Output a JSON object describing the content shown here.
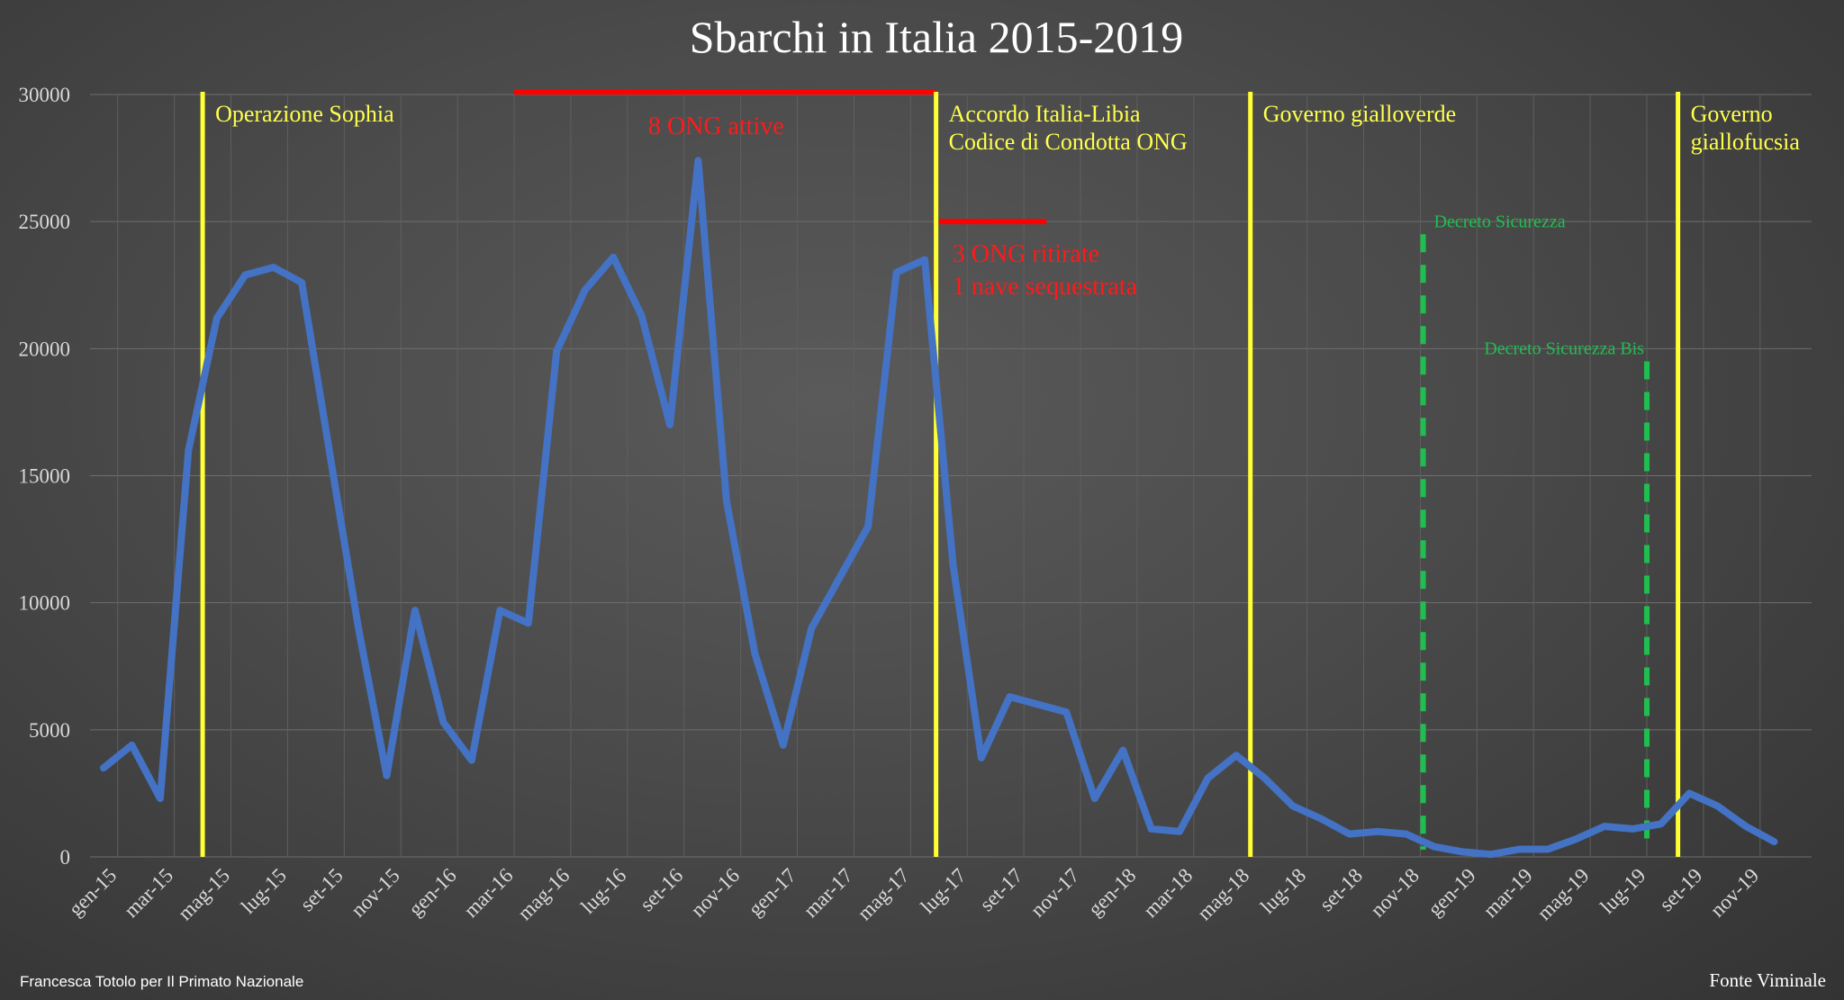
{
  "chart_data": {
    "type": "line",
    "title": "Sbarchi in Italia 2015-2019",
    "ylim": [
      0,
      30000
    ],
    "yticks": [
      "0",
      "5000",
      "10000",
      "15000",
      "20000",
      "25000",
      "30000"
    ],
    "grid": true,
    "x": [
      "gen-15",
      "feb-15",
      "mar-15",
      "apr-15",
      "mag-15",
      "giu-15",
      "lug-15",
      "ago-15",
      "set-15",
      "ott-15",
      "nov-15",
      "dic-15",
      "gen-16",
      "feb-16",
      "mar-16",
      "apr-16",
      "mag-16",
      "giu-16",
      "lug-16",
      "ago-16",
      "set-16",
      "ott-16",
      "nov-16",
      "dic-16",
      "gen-17",
      "feb-17",
      "mar-17",
      "apr-17",
      "mag-17",
      "giu-17",
      "lug-17",
      "ago-17",
      "set-17",
      "ott-17",
      "nov-17",
      "dic-17",
      "gen-18",
      "feb-18",
      "mar-18",
      "apr-18",
      "mag-18",
      "giu-18",
      "lug-18",
      "ago-18",
      "set-18",
      "ott-18",
      "nov-18",
      "dic-18",
      "gen-19",
      "feb-19",
      "mar-19",
      "apr-19",
      "mag-19",
      "giu-19",
      "lug-19",
      "ago-19",
      "set-19",
      "ott-19",
      "nov-19",
      "dic-19"
    ],
    "xtick_labels": [
      "gen-15",
      "mar-15",
      "mag-15",
      "lug-15",
      "set-15",
      "nov-15",
      "gen-16",
      "mar-16",
      "mag-16",
      "lug-16",
      "set-16",
      "nov-16",
      "gen-17",
      "mar-17",
      "mag-17",
      "lug-17",
      "set-17",
      "nov-17",
      "gen-18",
      "mar-18",
      "mag-18",
      "lug-18",
      "set-18",
      "nov-18",
      "gen-19",
      "mar-19",
      "mag-19",
      "lug-19",
      "set-19",
      "nov-19"
    ],
    "series": [
      {
        "color": "#4472c4",
        "values": [
          3500,
          4400,
          2300,
          16000,
          21200,
          22900,
          23200,
          22600,
          15800,
          9000,
          3200,
          9700,
          5300,
          3800,
          9700,
          9200,
          19900,
          22300,
          23600,
          21300,
          17000,
          27400,
          14000,
          8000,
          4400,
          9000,
          11000,
          13000,
          23000,
          23500,
          11500,
          3900,
          6300,
          6000,
          5700,
          2300,
          4200,
          1100,
          1000,
          3100,
          4000,
          3100,
          2000,
          1500,
          900,
          1000,
          900,
          400,
          200,
          100,
          300,
          300,
          700,
          1200,
          1100,
          1300,
          2500,
          2000,
          1200,
          600
        ]
      }
    ],
    "annotations": {
      "yellow_lines": [
        {
          "x_index": 3.5,
          "label": [
            "Operazione Sophia"
          ]
        },
        {
          "x_index": 29.4,
          "label": [
            "Accordo Italia-Libia",
            "Codice di Condotta ONG"
          ]
        },
        {
          "x_index": 40.5,
          "label": [
            "Governo gialloverde"
          ]
        },
        {
          "x_index": 55.6,
          "label": [
            "Governo",
            "giallofucsia"
          ]
        }
      ],
      "red_bars": [
        {
          "x_from": 14.5,
          "x_to": 29.4,
          "y": 30100,
          "label": [
            "8 ONG attive"
          ]
        },
        {
          "x_from": 29.5,
          "x_to": 33.3,
          "y": 25000,
          "label": [
            "3 ONG ritirate",
            "1 nave sequestrata"
          ]
        }
      ],
      "green_dashed": [
        {
          "x_index": 46.6,
          "y_top": 24500,
          "label": "Decreto Sicurezza"
        },
        {
          "x_index": 54.5,
          "y_top": 19500,
          "label": "Decreto Sicurezza Bis"
        }
      ]
    }
  },
  "footer": {
    "credit": "Francesca Totolo per Il Primato Nazionale",
    "source": "Fonte Viminale"
  }
}
